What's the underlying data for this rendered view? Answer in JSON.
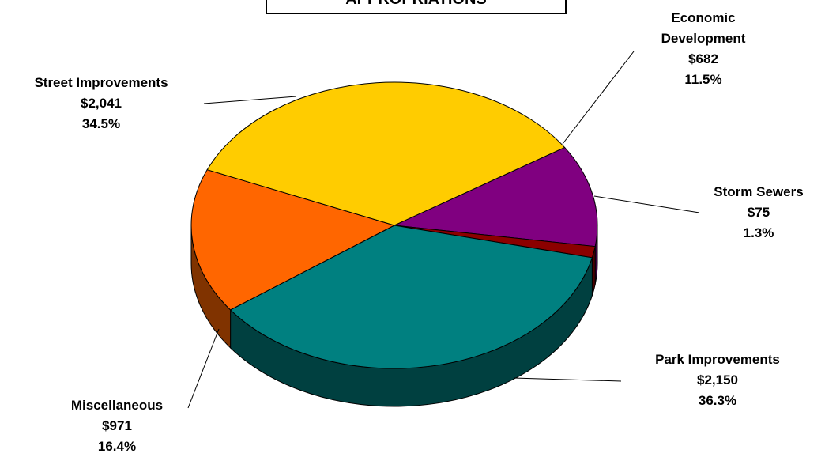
{
  "chart_data": {
    "type": "pie",
    "title": "APPROPRIATIONS",
    "slices": [
      {
        "label": "Economic Development",
        "label_lines": [
          "Economic",
          "Development"
        ],
        "value": 682,
        "value_text": "$682",
        "percent": 11.5,
        "percent_text": "11.5%",
        "color": "#800080",
        "side_color": "#400040"
      },
      {
        "label": "Storm Sewers",
        "label_lines": [
          "Storm Sewers"
        ],
        "value": 75,
        "value_text": "$75",
        "percent": 1.3,
        "percent_text": "1.3%",
        "color": "#8b0000",
        "side_color": "#4a0000"
      },
      {
        "label": "Park Improvements",
        "label_lines": [
          "Park Improvements"
        ],
        "value": 2150,
        "value_text": "$2,150",
        "percent": 36.3,
        "percent_text": "36.3%",
        "color": "#008080",
        "side_color": "#004040"
      },
      {
        "label": "Miscellaneous",
        "label_lines": [
          "Miscellaneous"
        ],
        "value": 971,
        "value_text": "$971",
        "percent": 16.4,
        "percent_text": "16.4%",
        "color": "#ff6600",
        "side_color": "#803300"
      },
      {
        "label": "Street Improvements",
        "label_lines": [
          "Street Improvements"
        ],
        "value": 2041,
        "value_text": "$2,041",
        "percent": 34.5,
        "percent_text": "34.5%",
        "color": "#ffcc00",
        "side_color": "#806600"
      }
    ]
  }
}
